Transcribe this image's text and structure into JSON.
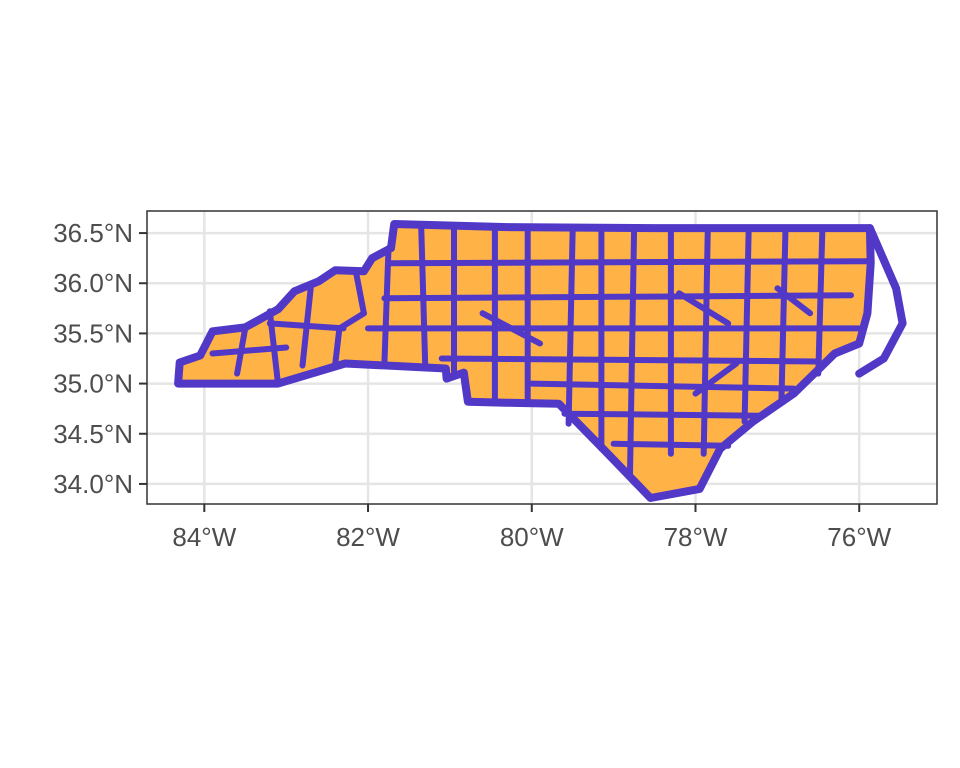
{
  "chart_data": {
    "type": "map",
    "region": "North Carolina counties",
    "xlim": [
      -84.7,
      -75.05
    ],
    "ylim": [
      33.8,
      36.72
    ],
    "x_ticks": [
      -84,
      -82,
      -80,
      -78,
      -76
    ],
    "y_ticks": [
      34.0,
      34.5,
      35.0,
      35.5,
      36.0,
      36.5
    ],
    "x_tick_labels": [
      "84°W",
      "82°W",
      "80°W",
      "78°W",
      "76°W"
    ],
    "y_tick_labels": [
      "34.0°N",
      "34.5°N",
      "35.0°N",
      "35.5°N",
      "36.0°N",
      "36.5°N"
    ],
    "grid": true,
    "fill_color": "#ffb347",
    "border_color": "#5138c6",
    "panel_border_color": "#333333",
    "grid_color": "#e5e5e5"
  }
}
